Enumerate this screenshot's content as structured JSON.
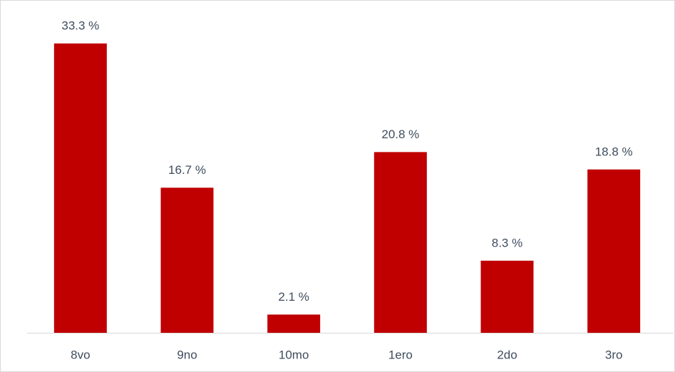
{
  "chart_data": {
    "type": "bar",
    "categories": [
      "8vo",
      "9no",
      "10mo",
      "1ero",
      "2do",
      "3ro"
    ],
    "values": [
      33.3,
      16.7,
      2.1,
      20.8,
      8.3,
      18.8
    ],
    "value_labels": [
      "33.3 %",
      "16.7 %",
      "2.1 %",
      "20.8 %",
      "8.3 %",
      "18.8 %"
    ],
    "color": "#c00000"
  }
}
